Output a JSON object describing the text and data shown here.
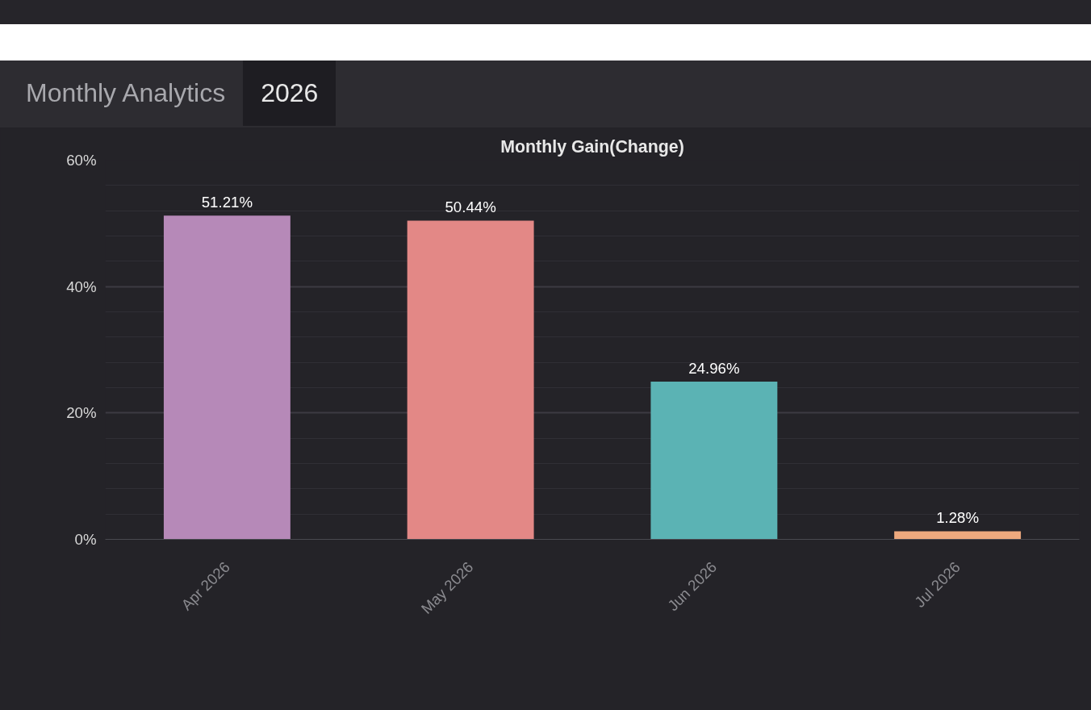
{
  "chart_data": {
    "type": "bar",
    "title": "Monthly Gain(Change)",
    "annotations": [
      "Monthly Analytics",
      "2026"
    ],
    "categories": [
      "Apr 2026",
      "May 2026",
      "Jun 2026",
      "Jul 2026"
    ],
    "values": [
      51.21,
      50.44,
      24.96,
      1.28
    ],
    "colors": [
      "#b689b8",
      "#e38886",
      "#5bb3b4",
      "#eea97e"
    ],
    "value_labels": [
      "51.21%",
      "50.44%",
      "24.96%",
      "1.28%"
    ],
    "ylim": [
      0,
      60
    ],
    "yticks": [
      {
        "value": 0,
        "label": "0%"
      },
      {
        "value": 20,
        "label": "20%"
      },
      {
        "value": 40,
        "label": "40%"
      },
      {
        "value": 60,
        "label": "60%"
      }
    ],
    "grid": "y"
  }
}
